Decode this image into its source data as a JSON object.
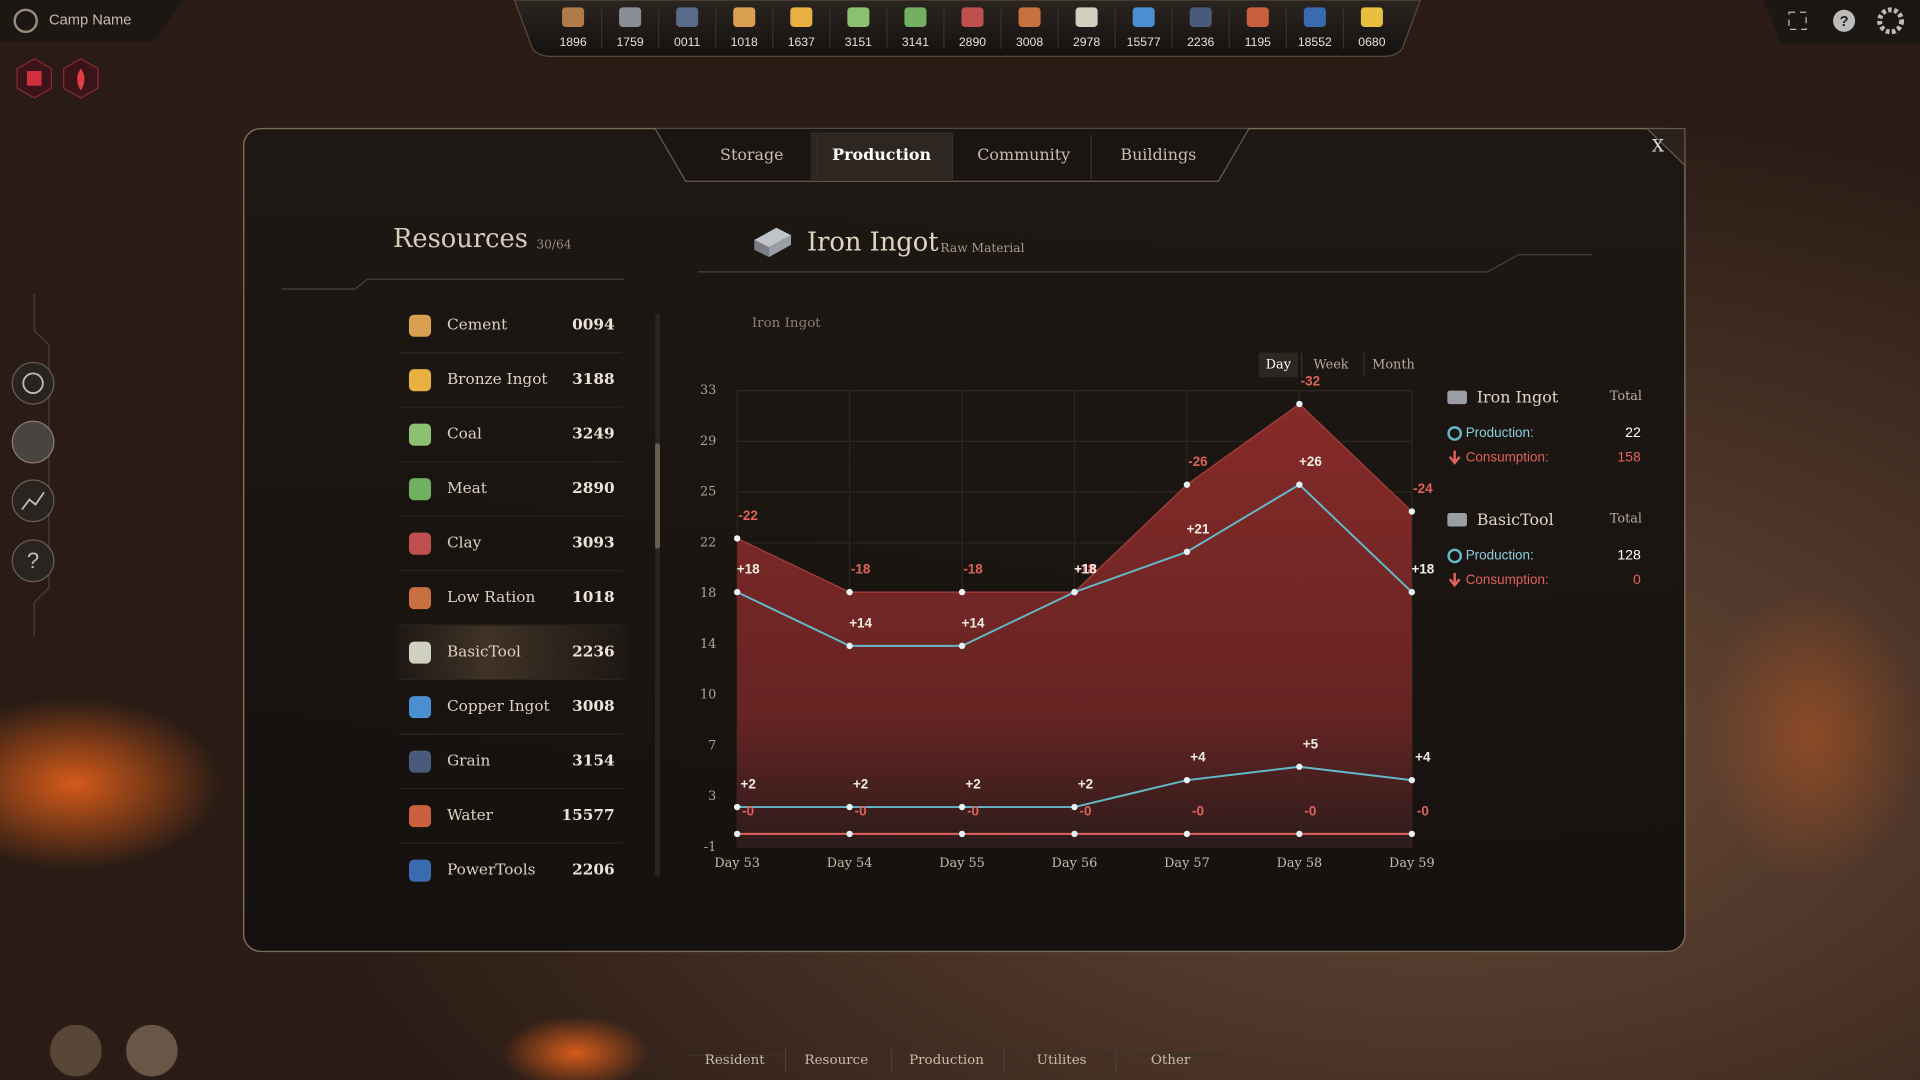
{
  "top_bar": {
    "camp_name": "Camp Name",
    "resources": [
      1896,
      1759,
      "0011",
      1018,
      1637,
      3151,
      3141,
      2890,
      3008,
      2978,
      15577,
      2236,
      1195,
      18552,
      "0680"
    ]
  },
  "tabs": {
    "items": [
      "Storage",
      "Production",
      "Community",
      "Buildings"
    ],
    "active": 1,
    "close": "X"
  },
  "resources_panel": {
    "title": "Resources",
    "count": "30/64",
    "selected": 6,
    "items": [
      {
        "name": "Cement",
        "amount": "0094"
      },
      {
        "name": "Bronze Ingot",
        "amount": 3188
      },
      {
        "name": "Coal",
        "amount": 3249
      },
      {
        "name": "Meat",
        "amount": 2890
      },
      {
        "name": "Clay",
        "amount": 3093
      },
      {
        "name": "Low Ration",
        "amount": 1018
      },
      {
        "name": "BasicTool",
        "amount": 2236
      },
      {
        "name": "Copper Ingot",
        "amount": 3008
      },
      {
        "name": "Grain",
        "amount": 3154
      },
      {
        "name": "Water",
        "amount": 15577
      },
      {
        "name": "PowerTools",
        "amount": 2206
      }
    ]
  },
  "detail": {
    "title": "Iron Ingot",
    "subtitle": "Raw Material"
  },
  "chart": {
    "type": "area",
    "title": "Iron Ingot",
    "periods": [
      "Day",
      "Week",
      "Month"
    ],
    "active_period": 0,
    "categories": [
      "Day 53",
      "Day 54",
      "Day 55",
      "Day 56",
      "Day 57",
      "Day 58",
      "Day 59"
    ],
    "ylim": [
      -1,
      33
    ],
    "yticks": [
      -1,
      {
        "value": 2.78,
        "label": "3"
      },
      {
        "value": 6.56,
        "label": "7"
      },
      {
        "value": 10.33,
        "label": "10"
      },
      {
        "value": 14.11,
        "label": "14"
      },
      {
        "value": 17.89,
        "label": "18"
      },
      {
        "value": 21.67,
        "label": "22"
      },
      {
        "value": 25.44,
        "label": "25"
      },
      {
        "value": 29.22,
        "label": "29"
      },
      33
    ],
    "grid": true,
    "series": [
      {
        "color": "#e0625a",
        "fill": true,
        "values": [
          22,
          18,
          18,
          18,
          26,
          32,
          24
        ],
        "value_labels": [
          "-22",
          "-18",
          "-18",
          "-18",
          "-26",
          "-32",
          "-24"
        ]
      },
      {
        "color": "#63b8c9",
        "fill": false,
        "values": [
          18,
          14,
          14,
          18,
          21,
          26,
          18
        ],
        "value_labels": [
          "+18",
          "+14",
          "+14",
          "+18",
          "+21",
          "+26",
          "+18"
        ]
      },
      {
        "color": "#63b8c9",
        "fill": false,
        "values": [
          2,
          2,
          2,
          2,
          4,
          5,
          4
        ],
        "value_labels": [
          "+2",
          "+2",
          "+2",
          "+2",
          "+4",
          "+5",
          "+4"
        ]
      },
      {
        "color": "#e0625a",
        "fill": false,
        "values": [
          0,
          0,
          0,
          0,
          0,
          0,
          0
        ],
        "value_labels": [
          "-0",
          "-0",
          "-0",
          "-0",
          "-0",
          "-0",
          "-0"
        ]
      }
    ]
  },
  "legend": [
    {
      "title": "Iron Ingot",
      "total": "Total",
      "production_label": "Production:",
      "production": 22,
      "consumption_label": "Consumption:",
      "consumption": 158
    },
    {
      "title": "BasicTool",
      "total": "Total",
      "production_label": "Production:",
      "production": 128,
      "consumption_label": "Consumption:",
      "consumption": 0
    }
  ],
  "bottom_nav": [
    "Resident",
    "Resource",
    "Production",
    "Utilites",
    "Other"
  ]
}
